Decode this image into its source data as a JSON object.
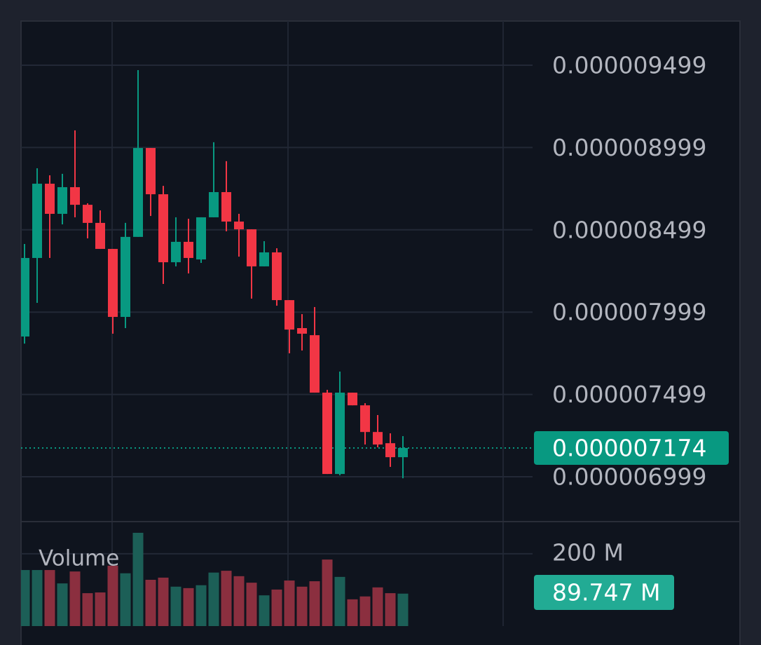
{
  "chart_data": [
    {
      "type": "candlestick",
      "open": [
        7.851e-06,
        8.328e-06,
        8.779e-06,
        8.596e-06,
        8.758e-06,
        8.651e-06,
        8.541e-06,
        8.383e-06,
        7.97e-06,
        8.456e-06,
        8.996e-06,
        8.715e-06,
        8.302e-06,
        8.426e-06,
        8.319e-06,
        8.575e-06,
        8.728e-06,
        8.549e-06,
        8.502e-06,
        8.277e-06,
        8.362e-06,
        8.072e-06,
        7.902e-06,
        7.859e-06,
        7.51e-06,
        7.016e-06,
        7.51e-06,
        7.433e-06,
        7.271e-06,
        7.203e-06,
        7.118e-06
      ],
      "high": [
        8.413e-06,
        8.873e-06,
        8.83e-06,
        8.839e-06,
        9.103e-06,
        8.66e-06,
        8.617e-06,
        8.383e-06,
        8.541e-06,
        9.469e-06,
        8.996e-06,
        8.766e-06,
        8.575e-06,
        8.566e-06,
        8.575e-06,
        9.031e-06,
        8.916e-06,
        8.596e-06,
        8.502e-06,
        8.43e-06,
        8.387e-06,
        8.072e-06,
        7.987e-06,
        8.03e-06,
        7.527e-06,
        7.638e-06,
        7.51e-06,
        7.446e-06,
        7.374e-06,
        7.263e-06,
        7.246e-06
      ],
      "low": [
        7.808e-06,
        8.055e-06,
        8.328e-06,
        8.532e-06,
        8.575e-06,
        8.447e-06,
        8.383e-06,
        7.868e-06,
        7.902e-06,
        8.456e-06,
        8.583e-06,
        8.17e-06,
        8.277e-06,
        8.234e-06,
        8.298e-06,
        8.575e-06,
        8.49e-06,
        8.336e-06,
        8.081e-06,
        8.277e-06,
        8.038e-06,
        7.749e-06,
        7.766e-06,
        7.51e-06,
        7.016e-06,
        7.008e-06,
        7.433e-06,
        7.195e-06,
        7.178e-06,
        7.059e-06,
        6.99e-06
      ],
      "close": [
        8.328e-06,
        8.779e-06,
        8.596e-06,
        8.758e-06,
        8.651e-06,
        8.541e-06,
        8.383e-06,
        7.97e-06,
        8.456e-06,
        8.996e-06,
        8.715e-06,
        8.302e-06,
        8.426e-06,
        8.328e-06,
        8.575e-06,
        8.728e-06,
        8.549e-06,
        8.502e-06,
        8.277e-06,
        8.362e-06,
        8.072e-06,
        7.893e-06,
        7.868e-06,
        7.51e-06,
        7.016e-06,
        7.51e-06,
        7.433e-06,
        7.271e-06,
        7.195e-06,
        7.118e-06,
        7.174e-06
      ],
      "up_color": "#089981",
      "down_color": "#f23645",
      "ylim": [
        6.731e-06,
        9.767e-06
      ],
      "yticks": [
        9.499e-06,
        8.999e-06,
        8.499e-06,
        7.999e-06,
        7.499e-06,
        6.999e-06
      ],
      "grid": true
    },
    {
      "type": "bar",
      "title": "Volume",
      "values": [
        155,
        155,
        155,
        118,
        151,
        91,
        93,
        167,
        146,
        258,
        128,
        134,
        109,
        105,
        113,
        148,
        153,
        138,
        120,
        85,
        101,
        126,
        109,
        124,
        184,
        136,
        74,
        82,
        107,
        91,
        89.747
      ],
      "value_labels": [
        null,
        null,
        null,
        null,
        null,
        null,
        null,
        null,
        null,
        null,
        null,
        null,
        null,
        null,
        null,
        null,
        null,
        null,
        null,
        null,
        null,
        null,
        null,
        null,
        null,
        null,
        null,
        null,
        null,
        null,
        "89.747 M"
      ],
      "up_color": "#1c5f57",
      "down_color": "#8b2f3f",
      "ylim": [
        0,
        287
      ],
      "yticks": [
        {
          "value": 200,
          "label": "200 M"
        }
      ]
    }
  ]
}
